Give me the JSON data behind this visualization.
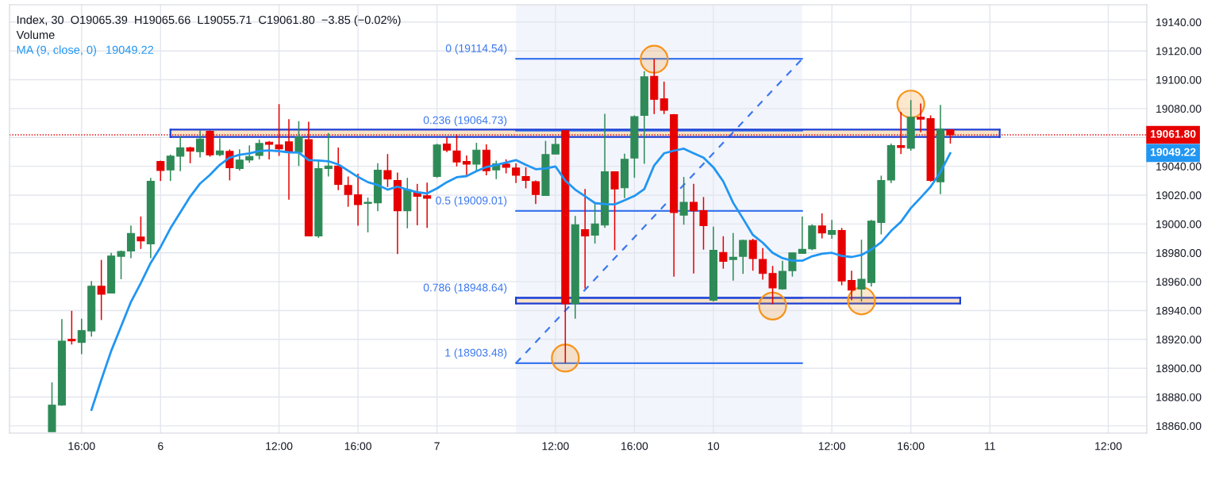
{
  "chart_data": {
    "type": "candlestick",
    "categories": [
      null,
      null,
      null,
      "16:00",
      null,
      null,
      null,
      null,
      null,
      null,
      null,
      "6",
      null,
      null,
      null,
      null,
      null,
      null,
      null,
      null,
      null,
      null,
      null,
      "12:00",
      null,
      null,
      null,
      null,
      null,
      null,
      null,
      "16:00",
      null,
      null,
      null,
      null,
      null,
      null,
      null,
      "7",
      null,
      null,
      null,
      null,
      null,
      null,
      null,
      null,
      null,
      null,
      null,
      "12:00",
      null,
      null,
      null,
      null,
      null,
      null,
      null,
      "16:00",
      null,
      null,
      null,
      null,
      null,
      null,
      null,
      "10",
      null,
      null,
      null,
      null,
      null,
      null,
      null,
      null,
      null,
      null,
      null,
      "12:00",
      null,
      null,
      null,
      null,
      null,
      null,
      null,
      "16:00",
      null,
      null,
      null,
      null,
      null,
      null,
      null,
      "11",
      null,
      null,
      null,
      null,
      null,
      null,
      null,
      null,
      null,
      null,
      null,
      "12:00",
      null,
      null,
      null
    ],
    "ohlc": [
      [
        18856,
        18890.2,
        18856,
        18874.4
      ],
      [
        18874.4,
        18934.0,
        18874.0,
        18918.8
      ],
      [
        18920.0,
        18939.8,
        18916.4,
        18919.0
      ],
      [
        18917.9,
        18934.3,
        18909.7,
        18926.1
      ],
      [
        18925.8,
        18960.4,
        18921.9,
        18956.8
      ],
      [
        18956.8,
        18975.1,
        18933.4,
        18951.3
      ],
      [
        18952.1,
        18980.0,
        18952.0,
        18977.8
      ],
      [
        18977.6,
        18981.5,
        18961.7,
        18980.9
      ],
      [
        18981.3,
        18999.0,
        18976.3,
        18993.5
      ],
      [
        18990.9,
        19005.2,
        18982.7,
        18988.2
      ],
      [
        18986.2,
        19032.0,
        18976.3,
        19029.6
      ],
      [
        19043.3,
        19043.9,
        19029.8,
        19037.1
      ],
      [
        19037.5,
        19048.1,
        19029.8,
        19047.0
      ],
      [
        19047.0,
        19060.7,
        19036.6,
        19052.8
      ],
      [
        19052.8,
        19053.6,
        19042.1,
        19050.6
      ],
      [
        19050.1,
        19064.9,
        19046.1,
        19058.9
      ],
      [
        19064.3,
        19064.9,
        19046.6,
        19047.9
      ],
      [
        19048.1,
        19059.4,
        19047.0,
        19050.6
      ],
      [
        19050.3,
        19051.7,
        19030.2,
        19039.0
      ],
      [
        19038.4,
        19051.7,
        19037.1,
        19044.3
      ],
      [
        19044.4,
        19054.5,
        19042.4,
        19046.8
      ],
      [
        19047.5,
        19058.5,
        19044.8,
        19055.8
      ],
      [
        19056.7,
        19057.6,
        19044.8,
        19055.2
      ],
      [
        19054.8,
        19083.1,
        19047.2,
        19052.1
      ],
      [
        19057.0,
        19072.7,
        19016.9,
        19049.9
      ],
      [
        19049.7,
        19071.3,
        19040.2,
        19060.3
      ],
      [
        19058.5,
        19070.9,
        18991.7,
        18991.7
      ],
      [
        18991.7,
        19043.9,
        18990.4,
        19038.4
      ],
      [
        19038.4,
        19063.1,
        19032.9,
        19040.2
      ],
      [
        19040.2,
        19053.0,
        19023.4,
        19027.5
      ],
      [
        19026.7,
        19032.9,
        19011.9,
        19020.5
      ],
      [
        19020.2,
        19034.8,
        18998.8,
        19013.4
      ],
      [
        19014.3,
        19018.3,
        18994.2,
        19015.0
      ],
      [
        19014.7,
        19042.1,
        19008.8,
        19037.3
      ],
      [
        19037.0,
        19048.5,
        19025.6,
        19031.1
      ],
      [
        19030.2,
        19035.7,
        18979.1,
        19009.2
      ],
      [
        19009.2,
        19032.0,
        18997.0,
        19023.8
      ],
      [
        19022.0,
        19027.8,
        18999.1,
        19019.2
      ],
      [
        19019.6,
        19028.7,
        18997.3,
        19017.8
      ],
      [
        19032.9,
        19055.7,
        19032.0,
        19054.8
      ],
      [
        19055.4,
        19060.3,
        19049.9,
        19051.2
      ],
      [
        19050.6,
        19062.1,
        19039.9,
        19043.0
      ],
      [
        19043.3,
        19047.5,
        19032.9,
        19041.5
      ],
      [
        19041.5,
        19056.3,
        19036.6,
        19051.2
      ],
      [
        19051.2,
        19055.2,
        19033.8,
        19036.9
      ],
      [
        19037.5,
        19043.9,
        19031.1,
        19041.7
      ],
      [
        19041.5,
        19044.8,
        19035.1,
        19039.3
      ],
      [
        19038.8,
        19042.1,
        19028.4,
        19033.8
      ],
      [
        19032.9,
        19039.3,
        19024.7,
        19030.2
      ],
      [
        19029.3,
        19030.2,
        19013.8,
        19020.5
      ],
      [
        19019.8,
        19057.6,
        19019.8,
        19048.1
      ],
      [
        19048.5,
        19059.8,
        19048.5,
        19055.2
      ],
      [
        19064.7,
        19064.7,
        18903.5,
        18944.7
      ],
      [
        18944.7,
        19005.6,
        18934.3,
        18999.5
      ],
      [
        18996.0,
        19024.2,
        18955.3,
        18991.7
      ],
      [
        18992.2,
        19014.7,
        18986.4,
        19000.1
      ],
      [
        18999.2,
        19076.4,
        18997.3,
        19036.2
      ],
      [
        19036.2,
        19036.2,
        18981.8,
        19024.3
      ],
      [
        19025.1,
        19048.8,
        19018.0,
        19044.8
      ],
      [
        19045.7,
        19075.3,
        19032.0,
        19074.4
      ],
      [
        19075.3,
        19106.0,
        19041.7,
        19102.0
      ],
      [
        19102.3,
        19114.5,
        19076.2,
        19086.4
      ],
      [
        19086.8,
        19098.7,
        19076.2,
        19078.9
      ],
      [
        19075.8,
        19076.2,
        18963.5,
        19007.9
      ],
      [
        19006.1,
        19032.6,
        18999.5,
        19015.0
      ],
      [
        19015.0,
        19027.8,
        18965.7,
        19009.2
      ],
      [
        19009.2,
        19018.7,
        18982.2,
        18998.8
      ],
      [
        18947.1,
        18998.2,
        18946.2,
        18981.8
      ],
      [
        18980.3,
        18991.5,
        18969.0,
        18974.1
      ],
      [
        18975.4,
        18993.7,
        18960.8,
        18976.9
      ],
      [
        18977.6,
        18989.1,
        18965.4,
        18988.6
      ],
      [
        18988.6,
        18989.7,
        18967.6,
        18976.0
      ],
      [
        18975.4,
        18983.3,
        18961.4,
        18965.7
      ],
      [
        18965.7,
        18970.9,
        18944.4,
        18955.7
      ],
      [
        18955.0,
        18974.5,
        18954.4,
        18967.2
      ],
      [
        18967.6,
        18980.0,
        18963.5,
        18980.0
      ],
      [
        18979.6,
        19005.2,
        18979.6,
        18982.4
      ],
      [
        18982.7,
        18999.7,
        18981.8,
        18998.6
      ],
      [
        18998.6,
        19007.4,
        18990.0,
        18993.7
      ],
      [
        18992.8,
        19002.8,
        18989.7,
        18995.5
      ],
      [
        18995.5,
        18997.3,
        18957.5,
        18960.5
      ],
      [
        18960.8,
        18967.6,
        18947.1,
        18954.1
      ],
      [
        18954.9,
        18989.1,
        18946.2,
        18961.7
      ],
      [
        18959.4,
        19002.8,
        18956.6,
        19001.9
      ],
      [
        19001.0,
        19033.5,
        18992.8,
        19030.2
      ],
      [
        19030.5,
        19055.7,
        19028.4,
        19054.3
      ],
      [
        19054.3,
        19077.7,
        19048.5,
        19053.0
      ],
      [
        19052.5,
        19085.9,
        19050.8,
        19074.0
      ],
      [
        19074.0,
        19083.5,
        19063.6,
        19072.7
      ],
      [
        19073.1,
        19075.3,
        19029.3,
        19030.2
      ],
      [
        19029.3,
        19082.6,
        19020.7,
        19065.8
      ],
      [
        19065.39,
        19065.66,
        19055.71,
        19061.8
      ],
      null,
      null,
      null,
      null,
      null,
      null,
      null,
      null,
      null,
      null,
      null,
      null,
      null,
      null,
      null,
      null,
      null,
      null,
      null
    ],
    "colors": [
      "#2e8b57",
      "#2e8b57",
      "#e60000",
      "#2e8b57",
      "#2e8b57",
      "#e60000",
      "#2e8b57",
      "#2e8b57",
      "#2e8b57",
      "#e60000",
      "#2e8b57",
      "#e60000",
      "#2e8b57",
      "#2e8b57",
      "#e60000",
      "#2e8b57",
      "#e60000",
      "#2e8b57",
      "#e60000",
      "#2e8b57",
      "#2e8b57",
      "#2e8b57",
      "#e60000",
      "#e60000",
      "#e60000",
      "#2e8b57",
      "#e60000",
      "#2e8b57",
      "#2e8b57",
      "#e60000",
      "#e60000",
      "#e60000",
      "#2e8b57",
      "#2e8b57",
      "#e60000",
      "#e60000",
      "#2e8b57",
      "#e60000",
      "#e60000",
      "#2e8b57",
      "#e60000",
      "#e60000",
      "#e60000",
      "#2e8b57",
      "#e60000",
      "#2e8b57",
      "#e60000",
      "#e60000",
      "#e60000",
      "#e60000",
      "#2e8b57",
      "#2e8b57",
      "#e60000",
      "#2e8b57",
      "#e60000",
      "#2e8b57",
      "#2e8b57",
      "#e60000",
      "#2e8b57",
      "#2e8b57",
      "#2e8b57",
      "#e60000",
      "#e60000",
      "#e60000",
      "#2e8b57",
      "#e60000",
      "#e60000",
      "#2e8b57",
      "#e60000",
      "#2e8b57",
      "#2e8b57",
      "#e60000",
      "#e60000",
      "#e60000",
      "#2e8b57",
      "#2e8b57",
      "#2e8b57",
      "#2e8b57",
      "#e60000",
      "#2e8b57",
      "#e60000",
      "#e60000",
      "#2e8b57",
      "#2e8b57",
      "#2e8b57",
      "#2e8b57",
      "#e60000",
      "#2e8b57",
      "#e60000",
      "#e60000",
      "#2e8b57",
      "#e60000",
      null,
      null,
      null,
      null,
      null,
      null,
      null,
      null,
      null,
      null,
      null,
      null,
      null,
      null,
      null,
      null,
      null,
      null,
      null
    ],
    "ylim": [
      18855,
      19152
    ],
    "yticks": [
      {
        "value": 18860,
        "label": "18860.00"
      },
      {
        "value": 18880,
        "label": "18880.00"
      },
      {
        "value": 18900,
        "label": "18900.00"
      },
      {
        "value": 18920,
        "label": "18920.00"
      },
      {
        "value": 18940,
        "label": "18940.00"
      },
      {
        "value": 18960,
        "label": "18960.00"
      },
      {
        "value": 18980,
        "label": "18980.00"
      },
      {
        "value": 19000,
        "label": "19000.00"
      },
      {
        "value": 19020,
        "label": "19020.00"
      },
      {
        "value": 19040,
        "label": "19040.00"
      },
      {
        "value": 19060,
        "label": null
      },
      {
        "value": 19080,
        "label": "19080.00"
      },
      {
        "value": 19100,
        "label": "19100.00"
      },
      {
        "value": 19120,
        "label": "19120.00"
      },
      {
        "value": 19140,
        "label": "19140.00"
      }
    ],
    "grid": true,
    "ref_lines": [
      {
        "axis": "y",
        "value": 19061.8,
        "label": "19061.80",
        "color": "#e60000",
        "line_style": "dotted"
      }
    ],
    "series": [
      {
        "type": "line",
        "name": "MA (9, close, 0)",
        "color": "#2196f3",
        "values": [
          null,
          null,
          null,
          null,
          18871,
          18892,
          18912,
          18929,
          18946,
          18959,
          18973,
          18984,
          18997,
          19008,
          19019,
          19028,
          19034,
          19041,
          19046,
          19048,
          19049,
          19050.6,
          19051,
          19050.5,
          19049.7,
          19049.5,
          19044.3,
          19044,
          19043.5,
          19041.3,
          19037,
          19032.6,
          19029,
          19027,
          19023.8,
          19025.9,
          19023.8,
          19022,
          19021.2,
          19024.7,
          19029,
          19032.4,
          19033.2,
          19036.6,
          19039.5,
          19041,
          19042.6,
          19044.3,
          19041,
          19038,
          19038.5,
          19039.9,
          19030,
          19023.8,
          19019.2,
          19014.5,
          19013.8,
          19013.6,
          19016.4,
          19019.4,
          19024.2,
          19040.6,
          19049,
          19050.8,
          19052.2,
          19049,
          19046,
          19039.3,
          19029.5,
          19014.7,
          19003.7,
          18992.4,
          18987,
          18980,
          18976.3,
          18974.5,
          18974.5,
          18977.6,
          18979.4,
          18980,
          18977.8,
          18977.1,
          18978.5,
          18982.3,
          18987.3,
          18995.2,
          19001.5,
          19011,
          19018.3,
          19025.8,
          19036,
          19049.22,
          null,
          null,
          null,
          null,
          null,
          null,
          null,
          null,
          null,
          null,
          null,
          null,
          null,
          null,
          null,
          null,
          null,
          null,
          null
        ]
      },
      {
        "type": "line",
        "name": "0 (19114.54)",
        "color": "#3b78f0",
        "values": [
          null,
          null,
          null,
          null,
          null,
          null,
          null,
          null,
          null,
          null,
          null,
          null,
          null,
          null,
          null,
          null,
          null,
          null,
          null,
          null,
          null,
          null,
          null,
          null,
          null,
          null,
          null,
          null,
          null,
          null,
          null,
          null,
          null,
          null,
          null,
          null,
          null,
          null,
          null,
          null,
          null,
          null,
          null,
          null,
          null,
          null,
          null,
          19114.54,
          null,
          null,
          null,
          null,
          null,
          null,
          null,
          null,
          null,
          null,
          null,
          null,
          null,
          null,
          null,
          null,
          null,
          null,
          null,
          null,
          null,
          null,
          null,
          null,
          null,
          null,
          null,
          null,
          19114.54,
          null,
          null,
          null,
          null,
          null,
          null,
          null,
          null,
          null,
          null,
          null,
          null,
          null,
          null,
          null,
          null,
          null,
          null,
          null,
          null,
          null,
          null,
          null,
          null,
          null,
          null,
          null,
          null,
          null,
          null,
          null,
          null,
          null,
          null
        ]
      },
      {
        "type": "line",
        "name": "0.236 (19064.73)",
        "color": "#3b78f0",
        "values": [
          null,
          null,
          null,
          null,
          null,
          null,
          null,
          null,
          null,
          null,
          null,
          null,
          null,
          null,
          null,
          null,
          null,
          null,
          null,
          null,
          null,
          null,
          null,
          null,
          null,
          null,
          null,
          null,
          null,
          null,
          null,
          null,
          null,
          null,
          null,
          null,
          null,
          null,
          null,
          null,
          null,
          null,
          null,
          null,
          null,
          null,
          null,
          19064.73,
          null,
          null,
          null,
          null,
          null,
          null,
          null,
          null,
          null,
          null,
          null,
          null,
          null,
          null,
          null,
          null,
          null,
          null,
          null,
          null,
          null,
          null,
          null,
          null,
          null,
          null,
          null,
          null,
          19064.73,
          null,
          null,
          null,
          null,
          null,
          null,
          null,
          null,
          null,
          null,
          null,
          null,
          null,
          null,
          null,
          null,
          null,
          null,
          null,
          null,
          null,
          null,
          null,
          null,
          null,
          null,
          null,
          null,
          null,
          null,
          null,
          null,
          null,
          null
        ]
      },
      {
        "type": "line",
        "name": "0.5 (19009.01)",
        "color": "#3b78f0",
        "values": [
          null,
          null,
          null,
          null,
          null,
          null,
          null,
          null,
          null,
          null,
          null,
          null,
          null,
          null,
          null,
          null,
          null,
          null,
          null,
          null,
          null,
          null,
          null,
          null,
          null,
          null,
          null,
          null,
          null,
          null,
          null,
          null,
          null,
          null,
          null,
          null,
          null,
          null,
          null,
          null,
          null,
          null,
          null,
          null,
          null,
          null,
          null,
          19009.01,
          null,
          null,
          null,
          null,
          null,
          null,
          null,
          null,
          null,
          null,
          null,
          null,
          null,
          null,
          null,
          null,
          null,
          null,
          null,
          null,
          null,
          null,
          null,
          null,
          null,
          null,
          null,
          null,
          19009.01,
          null,
          null,
          null,
          null,
          null,
          null,
          null,
          null,
          null,
          null,
          null,
          null,
          null,
          null,
          null,
          null,
          null,
          null,
          null,
          null,
          null,
          null,
          null,
          null,
          null,
          null,
          null,
          null,
          null,
          null,
          null,
          null,
          null,
          null
        ]
      },
      {
        "type": "line",
        "name": "0.786 (18948.64)",
        "color": "#3b78f0",
        "values": [
          null,
          null,
          null,
          null,
          null,
          null,
          null,
          null,
          null,
          null,
          null,
          null,
          null,
          null,
          null,
          null,
          null,
          null,
          null,
          null,
          null,
          null,
          null,
          null,
          null,
          null,
          null,
          null,
          null,
          null,
          null,
          null,
          null,
          null,
          null,
          null,
          null,
          null,
          null,
          null,
          null,
          null,
          null,
          null,
          null,
          null,
          null,
          18948.64,
          null,
          null,
          null,
          null,
          null,
          null,
          null,
          null,
          null,
          null,
          null,
          null,
          null,
          null,
          null,
          null,
          null,
          null,
          null,
          null,
          null,
          null,
          null,
          null,
          null,
          null,
          null,
          null,
          18948.64,
          null,
          null,
          null,
          null,
          null,
          null,
          null,
          null,
          null,
          null,
          null,
          null,
          null,
          null,
          null,
          null,
          null,
          null,
          null,
          null,
          null,
          null,
          null,
          null,
          null,
          null,
          null,
          null,
          null,
          null,
          null,
          null,
          null,
          null
        ]
      },
      {
        "type": "line",
        "name": "1 (18903.48)",
        "color": "#3b78f0",
        "values": [
          null,
          null,
          null,
          null,
          null,
          null,
          null,
          null,
          null,
          null,
          null,
          null,
          null,
          null,
          null,
          null,
          null,
          null,
          null,
          null,
          null,
          null,
          null,
          null,
          null,
          null,
          null,
          null,
          null,
          null,
          null,
          null,
          null,
          null,
          null,
          null,
          null,
          null,
          null,
          null,
          null,
          null,
          null,
          null,
          null,
          null,
          null,
          18903.48,
          null,
          null,
          null,
          null,
          null,
          null,
          null,
          null,
          null,
          null,
          null,
          null,
          null,
          null,
          null,
          null,
          null,
          null,
          null,
          null,
          null,
          null,
          null,
          null,
          null,
          null,
          null,
          null,
          18903.48,
          null,
          null,
          null,
          null,
          null,
          null,
          null,
          null,
          null,
          null,
          null,
          null,
          null,
          null,
          null,
          null,
          null,
          null,
          null,
          null,
          null,
          null,
          null,
          null,
          null,
          null,
          null,
          null,
          null,
          null,
          null,
          null,
          null,
          null
        ]
      },
      {
        "type": "line",
        "color": "#3b78f0",
        "line_style": "dashed",
        "values": [
          null,
          null,
          null,
          null,
          null,
          null,
          null,
          null,
          null,
          null,
          null,
          null,
          null,
          null,
          null,
          null,
          null,
          null,
          null,
          null,
          null,
          null,
          null,
          null,
          null,
          null,
          null,
          null,
          null,
          null,
          null,
          null,
          null,
          null,
          null,
          null,
          null,
          null,
          null,
          null,
          null,
          null,
          null,
          null,
          null,
          null,
          null,
          18903.48,
          null,
          null,
          null,
          null,
          null,
          null,
          null,
          null,
          null,
          null,
          null,
          null,
          null,
          null,
          null,
          null,
          null,
          null,
          null,
          null,
          null,
          null,
          null,
          null,
          null,
          null,
          null,
          null,
          19114.54,
          null,
          null,
          null,
          null,
          null,
          null,
          null,
          null,
          null,
          null,
          null,
          null,
          null,
          null,
          null,
          null,
          null,
          null,
          null,
          null,
          null,
          null,
          null,
          null,
          null,
          null,
          null,
          null,
          null,
          null,
          null,
          null,
          null,
          null
        ]
      },
      {
        "type": "line",
        "color": "#1d3fd6",
        "values": [
          null,
          null,
          null,
          null,
          null,
          null,
          null,
          null,
          null,
          null,
          null,
          null,
          19060.3,
          null,
          null,
          null,
          null,
          null,
          null,
          null,
          null,
          null,
          null,
          null,
          null,
          null,
          null,
          null,
          null,
          null,
          null,
          null,
          null,
          null,
          null,
          null,
          null,
          null,
          null,
          null,
          null,
          null,
          null,
          null,
          null,
          null,
          null,
          null,
          null,
          null,
          null,
          null,
          null,
          null,
          null,
          null,
          null,
          null,
          null,
          null,
          null,
          null,
          null,
          null,
          null,
          null,
          null,
          null,
          null,
          null,
          null,
          null,
          null,
          null,
          null,
          null,
          null,
          null,
          null,
          null,
          null,
          null,
          null,
          null,
          null,
          null,
          null,
          null,
          null,
          null,
          null,
          null,
          null,
          null,
          null,
          null,
          19060.3,
          null,
          null,
          null,
          null,
          null,
          null,
          null,
          null,
          null,
          null,
          null,
          null,
          null,
          null
        ]
      },
      {
        "type": "line",
        "color": "#1d3fd6",
        "values": [
          null,
          null,
          null,
          null,
          null,
          null,
          null,
          null,
          null,
          null,
          null,
          null,
          19065.4,
          null,
          null,
          null,
          null,
          null,
          null,
          null,
          null,
          null,
          null,
          null,
          null,
          null,
          null,
          null,
          null,
          null,
          null,
          null,
          null,
          null,
          null,
          null,
          null,
          null,
          null,
          null,
          null,
          null,
          null,
          null,
          null,
          null,
          null,
          null,
          null,
          null,
          null,
          null,
          null,
          null,
          null,
          null,
          null,
          null,
          null,
          null,
          null,
          null,
          null,
          null,
          null,
          null,
          null,
          null,
          null,
          null,
          null,
          null,
          null,
          null,
          null,
          null,
          null,
          null,
          null,
          null,
          null,
          null,
          null,
          null,
          null,
          null,
          null,
          null,
          null,
          null,
          null,
          null,
          null,
          null,
          null,
          null,
          19065.4,
          null,
          null,
          null,
          null,
          null,
          null,
          null,
          null,
          null,
          null,
          null,
          null,
          null,
          null
        ]
      },
      {
        "type": "line",
        "color": "#1d3fd6",
        "values": [
          null,
          null,
          null,
          null,
          null,
          null,
          null,
          null,
          null,
          null,
          null,
          null,
          null,
          null,
          null,
          null,
          null,
          null,
          null,
          null,
          null,
          null,
          null,
          null,
          null,
          null,
          null,
          null,
          null,
          null,
          null,
          null,
          null,
          null,
          null,
          null,
          null,
          null,
          null,
          null,
          null,
          null,
          null,
          null,
          null,
          null,
          null,
          18944.9,
          null,
          null,
          null,
          null,
          null,
          null,
          null,
          null,
          null,
          null,
          null,
          null,
          null,
          null,
          null,
          null,
          null,
          null,
          null,
          null,
          null,
          null,
          null,
          null,
          null,
          null,
          null,
          null,
          null,
          null,
          null,
          null,
          null,
          null,
          null,
          null,
          null,
          null,
          null,
          null,
          null,
          null,
          null,
          null,
          18944.9,
          null,
          null,
          null,
          null,
          null,
          null,
          null,
          null,
          null,
          null,
          null,
          null,
          null,
          null,
          null,
          null,
          null,
          null
        ]
      },
      {
        "type": "line",
        "color": "#1d3fd6",
        "values": [
          null,
          null,
          null,
          null,
          null,
          null,
          null,
          null,
          null,
          null,
          null,
          null,
          null,
          null,
          null,
          null,
          null,
          null,
          null,
          null,
          null,
          null,
          null,
          null,
          null,
          null,
          null,
          null,
          null,
          null,
          null,
          null,
          null,
          null,
          null,
          null,
          null,
          null,
          null,
          null,
          null,
          null,
          null,
          null,
          null,
          null,
          null,
          18948.9,
          null,
          null,
          null,
          null,
          null,
          null,
          null,
          null,
          null,
          null,
          null,
          null,
          null,
          null,
          null,
          null,
          null,
          null,
          null,
          null,
          null,
          null,
          null,
          null,
          null,
          null,
          null,
          null,
          null,
          null,
          null,
          null,
          null,
          null,
          null,
          null,
          null,
          null,
          null,
          null,
          null,
          null,
          null,
          null,
          18948.9,
          null,
          null,
          null,
          null,
          null,
          null,
          null,
          null,
          null,
          null,
          null,
          null,
          null,
          null,
          null,
          null,
          null,
          null
        ]
      },
      {
        "type": "scatter",
        "color": "#f7931a",
        "marker": "circle",
        "values": [
          null,
          null,
          null,
          null,
          null,
          null,
          null,
          null,
          null,
          null,
          null,
          null,
          null,
          null,
          null,
          null,
          null,
          null,
          null,
          null,
          null,
          null,
          null,
          null,
          null,
          null,
          null,
          null,
          null,
          null,
          null,
          null,
          null,
          null,
          null,
          null,
          null,
          null,
          null,
          null,
          null,
          null,
          null,
          null,
          null,
          null,
          null,
          null,
          null,
          null,
          null,
          null,
          18907,
          null,
          null,
          null,
          null,
          null,
          null,
          null,
          null,
          19114.2,
          null,
          null,
          null,
          null,
          null,
          null,
          null,
          null,
          null,
          null,
          null,
          18943.1,
          null,
          null,
          null,
          null,
          null,
          null,
          null,
          null,
          18946.7,
          null,
          null,
          null,
          null,
          19083.1,
          null,
          null,
          null,
          null,
          null,
          null,
          null,
          null,
          null,
          null,
          null,
          null,
          null,
          null,
          null,
          null,
          null,
          null,
          null,
          null,
          null,
          null,
          null
        ]
      }
    ],
    "annotations": [
      "Index, 30  O19065.39  H19065.66  L19055.71  C19061.80  −3.85 (−0.02%)",
      "Volume",
      "19049.22",
      "19049.22"
    ]
  }
}
